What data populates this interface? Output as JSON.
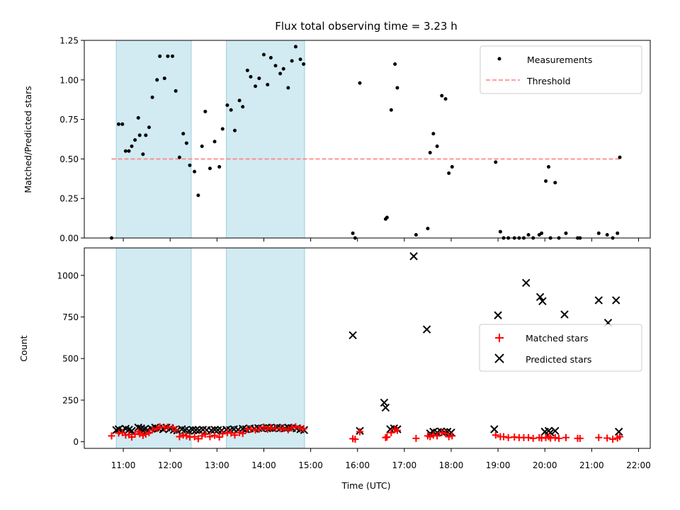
{
  "chart_data": [
    {
      "type": "scatter",
      "title": "Flux total observing time = 3.23 h",
      "xlabel": "",
      "ylabel": "Matched/Predicted stars",
      "xlim": [
        10.167,
        22.25
      ],
      "ylim": [
        0,
        1.25
      ],
      "yticks": [
        "0.00",
        "0.25",
        "0.50",
        "0.75",
        "1.00",
        "1.25"
      ],
      "threshold": 0.5,
      "threshold_range": [
        10.75,
        21.6
      ],
      "shaded_intervals": [
        [
          10.85,
          12.45
        ],
        [
          13.2,
          14.87
        ]
      ],
      "grid": false,
      "legend": {
        "position": "top-right",
        "entries": [
          "Measurements",
          "Threshold"
        ]
      },
      "series": [
        {
          "name": "Measurements",
          "x": [
            10.75,
            10.9,
            10.98,
            11.05,
            11.12,
            11.18,
            11.25,
            11.32,
            11.35,
            11.42,
            11.48,
            11.55,
            11.62,
            11.72,
            11.78,
            11.88,
            11.95,
            12.05,
            12.12,
            12.2,
            12.28,
            12.35,
            12.42,
            12.52,
            12.6,
            12.68,
            12.75,
            12.85,
            12.95,
            13.05,
            13.12,
            13.22,
            13.3,
            13.38,
            13.48,
            13.55,
            13.65,
            13.72,
            13.82,
            13.9,
            14.0,
            14.08,
            14.15,
            14.25,
            14.35,
            14.42,
            14.52,
            14.6,
            14.68,
            14.78,
            14.85,
            15.9,
            15.95,
            16.05,
            16.6,
            16.63,
            16.72,
            16.8,
            16.85,
            17.25,
            17.5,
            17.55,
            17.62,
            17.7,
            17.8,
            17.88,
            17.95,
            18.02,
            18.95,
            19.05,
            19.12,
            19.22,
            19.35,
            19.45,
            19.55,
            19.65,
            19.75,
            19.88,
            19.93,
            20.02,
            20.08,
            20.12,
            20.22,
            20.3,
            20.45,
            20.7,
            20.75,
            21.15,
            21.33,
            21.45,
            21.55,
            21.6
          ],
          "y": [
            0.0,
            0.72,
            0.72,
            0.55,
            0.55,
            0.58,
            0.62,
            0.76,
            0.65,
            0.53,
            0.65,
            0.7,
            0.89,
            1.0,
            1.15,
            1.01,
            1.15,
            1.15,
            0.93,
            0.51,
            0.66,
            0.6,
            0.46,
            0.42,
            0.27,
            0.58,
            0.8,
            0.44,
            0.61,
            0.45,
            0.69,
            0.84,
            0.81,
            0.68,
            0.87,
            0.83,
            1.06,
            1.02,
            0.96,
            1.01,
            1.16,
            0.97,
            1.14,
            1.09,
            1.04,
            1.07,
            0.95,
            1.12,
            1.21,
            1.13,
            1.1,
            0.03,
            0.0,
            0.98,
            0.12,
            0.13,
            0.81,
            1.1,
            0.95,
            0.02,
            0.06,
            0.54,
            0.66,
            0.58,
            0.9,
            0.88,
            0.41,
            0.45,
            0.48,
            0.04,
            0.0,
            0.0,
            0.0,
            0.0,
            0.0,
            0.02,
            0.0,
            0.02,
            0.03,
            0.36,
            0.45,
            0.0,
            0.35,
            0.0,
            0.03,
            0.0,
            0.0,
            0.03,
            0.02,
            0.0,
            0.03,
            0.51
          ]
        }
      ]
    },
    {
      "type": "scatter",
      "title": "",
      "xlabel": "Time (UTC)",
      "ylabel": "Count",
      "xlim": [
        10.167,
        22.25
      ],
      "ylim": [
        -40,
        1165
      ],
      "yticks": [
        "0",
        "250",
        "500",
        "750",
        "1000"
      ],
      "xticks": [
        "11:00",
        "12:00",
        "13:00",
        "14:00",
        "15:00",
        "16:00",
        "17:00",
        "18:00",
        "19:00",
        "20:00",
        "21:00",
        "22:00"
      ],
      "shaded_intervals": [
        [
          10.85,
          12.45
        ],
        [
          13.2,
          14.87
        ]
      ],
      "grid": false,
      "legend": {
        "position": "center-right",
        "entries": [
          "Matched stars",
          "Predicted stars"
        ]
      },
      "series": [
        {
          "name": "Matched stars",
          "x": [
            10.75,
            10.9,
            10.98,
            11.05,
            11.12,
            11.18,
            11.25,
            11.32,
            11.35,
            11.42,
            11.48,
            11.55,
            11.62,
            11.72,
            11.78,
            11.88,
            11.95,
            12.05,
            12.12,
            12.2,
            12.28,
            12.35,
            12.42,
            12.52,
            12.6,
            12.68,
            12.75,
            12.85,
            12.95,
            13.05,
            13.12,
            13.22,
            13.3,
            13.38,
            13.48,
            13.55,
            13.65,
            13.72,
            13.82,
            13.9,
            14.0,
            14.08,
            14.15,
            14.25,
            14.35,
            14.42,
            14.52,
            14.6,
            14.68,
            14.78,
            14.85,
            15.9,
            15.95,
            16.05,
            16.6,
            16.63,
            16.72,
            16.8,
            16.85,
            17.25,
            17.5,
            17.55,
            17.62,
            17.7,
            17.8,
            17.88,
            17.95,
            18.02,
            18.95,
            19.05,
            19.12,
            19.22,
            19.35,
            19.45,
            19.55,
            19.65,
            19.75,
            19.88,
            19.93,
            20.02,
            20.08,
            20.12,
            20.22,
            20.3,
            20.45,
            20.7,
            20.75,
            21.15,
            21.33,
            21.45,
            21.55,
            21.6
          ],
          "y": [
            35,
            52,
            55,
            40,
            42,
            28,
            45,
            60,
            48,
            38,
            45,
            55,
            70,
            80,
            90,
            85,
            88,
            85,
            70,
            30,
            40,
            35,
            28,
            30,
            18,
            35,
            45,
            30,
            38,
            28,
            48,
            55,
            52,
            40,
            55,
            50,
            75,
            75,
            70,
            75,
            88,
            75,
            85,
            80,
            78,
            80,
            72,
            85,
            90,
            82,
            78,
            18,
            15,
            60,
            25,
            28,
            55,
            75,
            68,
            20,
            35,
            30,
            40,
            35,
            55,
            50,
            30,
            35,
            40,
            30,
            30,
            25,
            28,
            25,
            25,
            25,
            20,
            25,
            22,
            25,
            30,
            22,
            25,
            20,
            25,
            20,
            20,
            25,
            22,
            15,
            22,
            30
          ]
        },
        {
          "name": "Predicted stars",
          "x": [
            10.85,
            10.9,
            10.98,
            11.05,
            11.12,
            11.18,
            11.32,
            11.38,
            11.45,
            11.52,
            11.6,
            11.68,
            11.75,
            11.85,
            11.92,
            12.0,
            12.08,
            12.15,
            12.25,
            12.32,
            12.4,
            12.48,
            12.55,
            12.62,
            12.7,
            12.78,
            12.88,
            12.95,
            13.02,
            13.1,
            13.2,
            13.28,
            13.36,
            13.45,
            13.55,
            13.62,
            13.7,
            13.8,
            13.88,
            13.96,
            14.05,
            14.12,
            14.2,
            14.28,
            14.36,
            14.45,
            14.52,
            14.6,
            14.7,
            14.78,
            14.86,
            15.9,
            16.05,
            16.57,
            16.6,
            16.7,
            16.78,
            16.85,
            17.2,
            17.48,
            17.55,
            17.62,
            17.7,
            17.78,
            17.85,
            17.92,
            18.0,
            18.92,
            19.0,
            19.6,
            19.9,
            19.95,
            20.0,
            20.08,
            20.12,
            20.22,
            20.42,
            21.15,
            21.35,
            21.52,
            21.58
          ],
          "y": [
            70,
            75,
            65,
            78,
            72,
            65,
            85,
            80,
            75,
            70,
            78,
            85,
            80,
            75,
            85,
            80,
            72,
            68,
            75,
            70,
            65,
            72,
            70,
            68,
            72,
            70,
            68,
            72,
            70,
            68,
            72,
            70,
            75,
            72,
            78,
            75,
            80,
            78,
            82,
            80,
            85,
            82,
            80,
            85,
            82,
            80,
            85,
            82,
            80,
            75,
            70,
            640,
            65,
            235,
            205,
            75,
            80,
            75,
            1115,
            675,
            50,
            60,
            55,
            62,
            58,
            60,
            55,
            75,
            760,
            955,
            870,
            845,
            60,
            65,
            55,
            65,
            765,
            850,
            715,
            850,
            60
          ]
        }
      ]
    }
  ]
}
